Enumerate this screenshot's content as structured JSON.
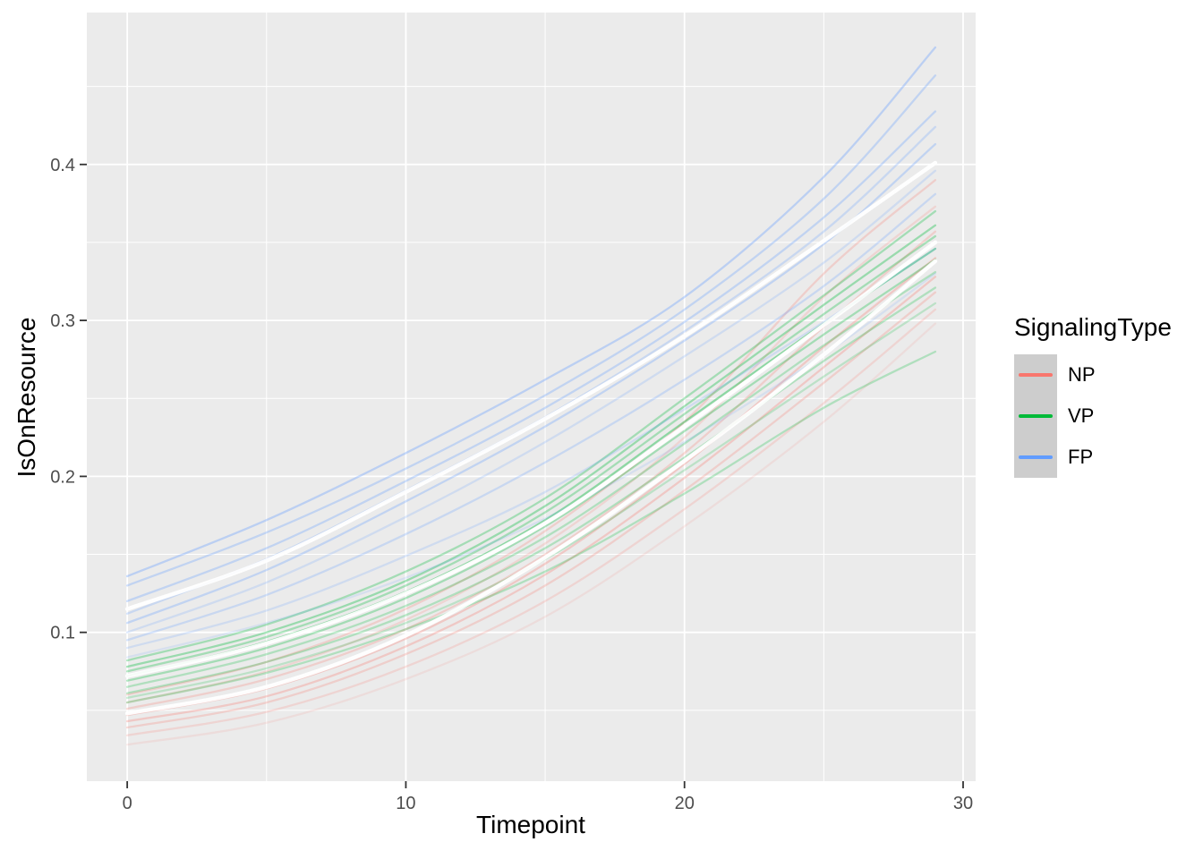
{
  "figure": {
    "background": "#ffffff",
    "panel_background": "#ebebeb",
    "grid_color": "#ffffff",
    "tick_mark_color": "#333333",
    "tick_label_color": "#4d4d4d",
    "axis_title_color": "#000000"
  },
  "axes": {
    "x": {
      "title": "Timepoint",
      "tick_labels": [
        "0",
        "10",
        "20",
        "30"
      ]
    },
    "y": {
      "title": "IsOnResource",
      "tick_labels": [
        "0.1",
        "0.2",
        "0.3",
        "0.4"
      ]
    }
  },
  "legend": {
    "title": "SignalingType",
    "key_fill": "#cdcdcd",
    "items": [
      {
        "label": "NP",
        "color": "#F8766D"
      },
      {
        "label": "VP",
        "color": "#00BA38"
      },
      {
        "label": "FP",
        "color": "#619CFF"
      }
    ]
  },
  "chart_data": {
    "type": "line",
    "title": "",
    "xlabel": "Timepoint",
    "ylabel": "IsOnResource",
    "xlim": [
      -1.45,
      30.45
    ],
    "ylim": [
      0.0046,
      0.4974
    ],
    "x_major_ticks": [
      0,
      10,
      20,
      30
    ],
    "x_minor_ticks": [
      5,
      15,
      25
    ],
    "y_major_ticks": [
      0.1,
      0.2,
      0.3,
      0.4
    ],
    "y_minor_ticks": [
      0.05,
      0.15,
      0.25,
      0.35,
      0.45
    ],
    "legend_position": "right",
    "grid": "on",
    "x": [
      0,
      5,
      10,
      15,
      20,
      25,
      29
    ],
    "groups": [
      {
        "name": "NP",
        "color": "#F8766D",
        "lines": [
          {
            "alpha": 0.25,
            "values": [
              0.06,
              0.081,
              0.115,
              0.165,
              0.235,
              0.33,
              0.39
            ]
          },
          {
            "alpha": 0.2,
            "values": [
              0.055,
              0.075,
              0.108,
              0.157,
              0.225,
              0.315,
              0.373
            ]
          },
          {
            "alpha": 0.25,
            "values": [
              0.051,
              0.07,
              0.102,
              0.15,
              0.215,
              0.296,
              0.357
            ]
          },
          {
            "alpha": 0.3,
            "values": [
              0.047,
              0.064,
              0.096,
              0.144,
              0.208,
              0.283,
              0.34
            ]
          },
          {
            "alpha": 0.3,
            "values": [
              0.043,
              0.059,
              0.091,
              0.137,
              0.199,
              0.27,
              0.328
            ]
          },
          {
            "alpha": 0.25,
            "values": [
              0.039,
              0.055,
              0.086,
              0.13,
              0.191,
              0.26,
              0.318
            ]
          },
          {
            "alpha": 0.2,
            "values": [
              0.034,
              0.049,
              0.078,
              0.12,
              0.179,
              0.247,
              0.307
            ]
          },
          {
            "alpha": 0.12,
            "values": [
              0.028,
              0.042,
              0.07,
              0.11,
              0.168,
              0.235,
              0.298
            ]
          }
        ]
      },
      {
        "name": "VP",
        "color": "#00BA38",
        "lines": [
          {
            "alpha": 0.3,
            "values": [
              0.082,
              0.105,
              0.139,
              0.186,
              0.25,
              0.316,
              0.37
            ]
          },
          {
            "alpha": 0.35,
            "values": [
              0.078,
              0.1,
              0.133,
              0.181,
              0.245,
              0.31,
              0.361
            ]
          },
          {
            "alpha": 0.3,
            "values": [
              0.075,
              0.097,
              0.13,
              0.177,
              0.24,
              0.304,
              0.354
            ]
          },
          {
            "alpha": 0.4,
            "values": [
              0.072,
              0.094,
              0.126,
              0.172,
              0.235,
              0.298,
              0.346
            ]
          },
          {
            "alpha": 0.3,
            "values": [
              0.069,
              0.09,
              0.122,
              0.168,
              0.229,
              0.291,
              0.339
            ]
          },
          {
            "alpha": 0.25,
            "values": [
              0.065,
              0.086,
              0.117,
              0.161,
              0.221,
              0.284,
              0.331
            ]
          },
          {
            "alpha": 0.25,
            "values": [
              0.061,
              0.081,
              0.111,
              0.154,
              0.212,
              0.274,
              0.321
            ]
          },
          {
            "alpha": 0.2,
            "values": [
              0.058,
              0.077,
              0.106,
              0.147,
              0.204,
              0.264,
              0.311
            ]
          },
          {
            "alpha": 0.25,
            "values": [
              0.055,
              0.074,
              0.102,
              0.139,
              0.189,
              0.244,
              0.28
            ]
          }
        ]
      },
      {
        "name": "FP",
        "color": "#619CFF",
        "lines": [
          {
            "alpha": 0.35,
            "values": [
              0.136,
              0.172,
              0.215,
              0.262,
              0.315,
              0.392,
              0.475
            ]
          },
          {
            "alpha": 0.3,
            "values": [
              0.13,
              0.164,
              0.205,
              0.252,
              0.307,
              0.378,
              0.457
            ]
          },
          {
            "alpha": 0.3,
            "values": [
              0.12,
              0.154,
              0.197,
              0.244,
              0.299,
              0.366,
              0.434
            ]
          },
          {
            "alpha": 0.25,
            "values": [
              0.112,
              0.147,
              0.191,
              0.238,
              0.293,
              0.357,
              0.424
            ]
          },
          {
            "alpha": 0.3,
            "values": [
              0.106,
              0.14,
              0.184,
              0.232,
              0.287,
              0.349,
              0.413
            ]
          },
          {
            "alpha": 0.2,
            "values": [
              0.1,
              0.132,
              0.174,
              0.222,
              0.277,
              0.337,
              0.396
            ]
          },
          {
            "alpha": 0.25,
            "values": [
              0.095,
              0.124,
              0.163,
              0.209,
              0.262,
              0.322,
              0.381
            ]
          },
          {
            "alpha": 0.2,
            "values": [
              0.09,
              0.114,
              0.149,
              0.19,
              0.243,
              0.299,
              0.346
            ]
          },
          {
            "alpha": 0.15,
            "values": [
              0.084,
              0.106,
              0.135,
              0.173,
              0.222,
              0.278,
              0.33
            ]
          }
        ]
      }
    ],
    "mean_lines": [
      {
        "group": "NP",
        "color": "#ffffff",
        "alpha": 0.92,
        "values": [
          0.048,
          0.065,
          0.098,
          0.148,
          0.21,
          0.278,
          0.338
        ]
      },
      {
        "group": "VP",
        "color": "#ffffff",
        "alpha": 0.92,
        "values": [
          0.072,
          0.093,
          0.125,
          0.17,
          0.232,
          0.297,
          0.35
        ]
      },
      {
        "group": "FP",
        "color": "#ffffff",
        "alpha": 0.92,
        "values": [
          0.115,
          0.146,
          0.19,
          0.237,
          0.29,
          0.351,
          0.401
        ]
      }
    ]
  }
}
